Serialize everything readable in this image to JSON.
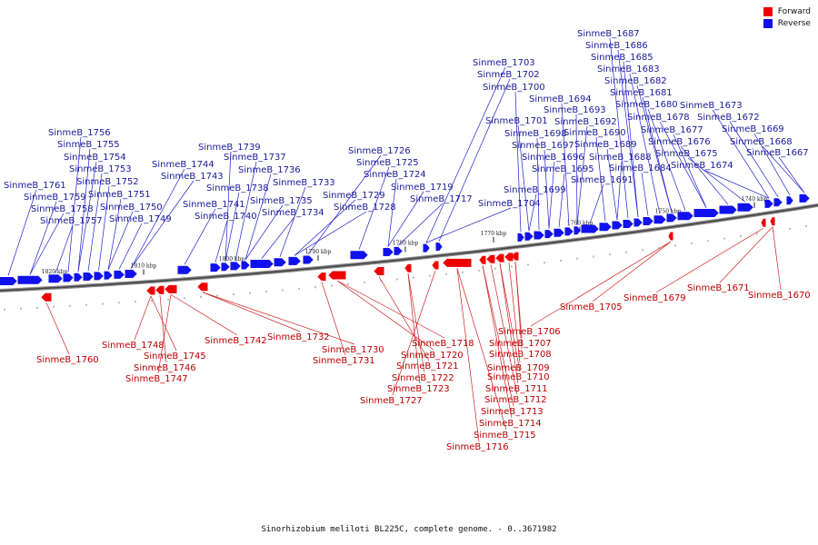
{
  "caption": "Sinorhizobium meliloti BL225C, complete genome. - 0..3671982",
  "legend": [
    {
      "label": "Forward",
      "color": "#ee0000"
    },
    {
      "label": "Reverse",
      "color": "#1111ee"
    }
  ],
  "colors": {
    "forward": "#ee0000",
    "reverse": "#1111ee",
    "forward_text": "#bb0000",
    "reverse_text": "#1a1a9a",
    "backbone": "#555555"
  },
  "ticks": [
    "1820 kbp",
    "1810 kbp",
    "1800 kbp",
    "1790 kbp",
    "1780 kbp",
    "1770 kbp",
    "1760 kbp",
    "1750 kbp",
    "1740 kbp"
  ],
  "reverse_genes": [
    "SinmeB_1761",
    "SinmeB_1759",
    "SinmeB_1758",
    "SinmeB_1757",
    "SinmeB_1756",
    "SinmeB_1755",
    "SinmeB_1754",
    "SinmeB_1753",
    "SinmeB_1752",
    "SinmeB_1751",
    "SinmeB_1750",
    "SinmeB_1749",
    "SinmeB_1744",
    "SinmeB_1743",
    "SinmeB_1741",
    "SinmeB_1740",
    "SinmeB_1739",
    "SinmeB_1738",
    "SinmeB_1737",
    "SinmeB_1736",
    "SinmeB_1735",
    "SinmeB_1734",
    "SinmeB_1733",
    "SinmeB_1729",
    "SinmeB_1728",
    "SinmeB_1726",
    "SinmeB_1725",
    "SinmeB_1724",
    "SinmeB_1719",
    "SinmeB_1717",
    "SinmeB_1704",
    "SinmeB_1703",
    "SinmeB_1702",
    "SinmeB_1700",
    "SinmeB_1701",
    "SinmeB_1699",
    "SinmeB_1698",
    "SinmeB_1697",
    "SinmeB_1696",
    "SinmeB_1695",
    "SinmeB_1694",
    "SinmeB_1693",
    "SinmeB_1692",
    "SinmeB_1691",
    "SinmeB_1690",
    "SinmeB_1689",
    "SinmeB_1688",
    "SinmeB_1687",
    "SinmeB_1686",
    "SinmeB_1685",
    "SinmeB_1684",
    "SinmeB_1683",
    "SinmeB_1682",
    "SinmeB_1681",
    "SinmeB_1680",
    "SinmeB_1678",
    "SinmeB_1677",
    "SinmeB_1676",
    "SinmeB_1675",
    "SinmeB_1674",
    "SinmeB_1673",
    "SinmeB_1672",
    "SinmeB_1669",
    "SinmeB_1668",
    "SinmeB_1667"
  ],
  "forward_genes": [
    "SinmeB_1760",
    "SinmeB_1748",
    "SinmeB_1745",
    "SinmeB_1746",
    "SinmeB_1747",
    "SinmeB_1742",
    "SinmeB_1732",
    "SinmeB_1730",
    "SinmeB_1731",
    "SinmeB_1718",
    "SinmeB_1720",
    "SinmeB_1721",
    "SinmeB_1722",
    "SinmeB_1723",
    "SinmeB_1727",
    "SinmeB_1716",
    "SinmeB_1715",
    "SinmeB_1714",
    "SinmeB_1713",
    "SinmeB_1712",
    "SinmeB_1711",
    "SinmeB_1710",
    "SinmeB_1709",
    "SinmeB_1708",
    "SinmeB_1707",
    "SinmeB_1706",
    "SinmeB_1705",
    "SinmeB_1679",
    "SinmeB_1671",
    "SinmeB_1670"
  ]
}
